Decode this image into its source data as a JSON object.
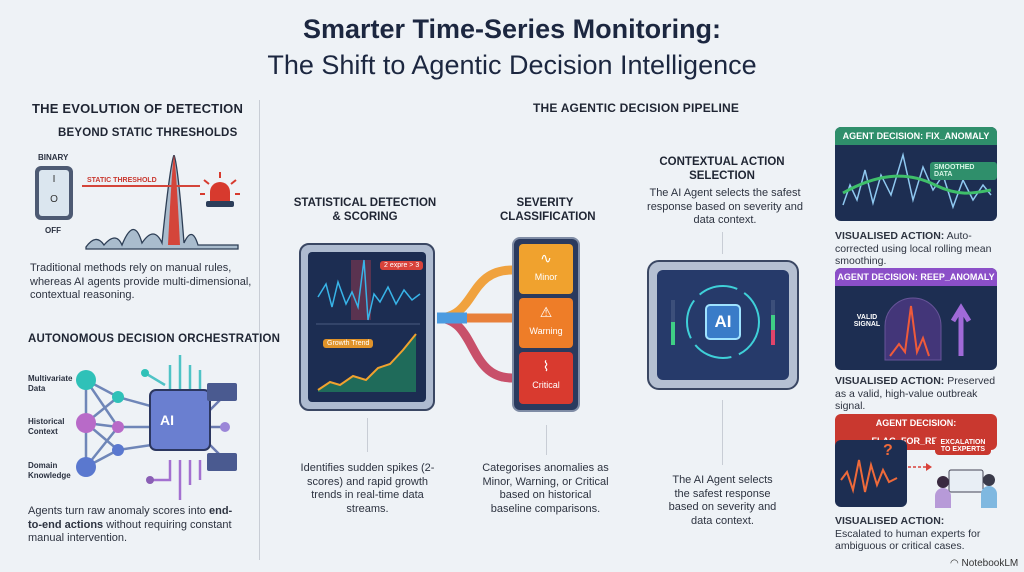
{
  "title": {
    "line1": "Smarter Time-Series Monitoring:",
    "line2": "The Shift to Agentic Decision Intelligence"
  },
  "evolution": {
    "heading": "THE EVOLUTION OF DETECTION",
    "subheading": "BEYOND STATIC THRESHOLDS",
    "switch_top": "BINARY",
    "switch_bottom": "OFF",
    "switch_on_glyph": "I",
    "switch_off_glyph": "O",
    "threshold_label": "STATIC THRESHOLD",
    "text": "Traditional methods rely on manual rules, whereas AI agents provide multi-dimensional, contextual reasoning.",
    "icons": [
      "power-switch-icon",
      "alarm-siren-icon"
    ]
  },
  "orchestration": {
    "heading": "AUTONOMOUS DECISION ORCHESTRATION",
    "inputs": [
      "Multivariate Data",
      "Historical Context",
      "Domain Knowledge"
    ],
    "chip_label": "AI",
    "text_plain_before": "Agents turn raw anomaly scores into ",
    "text_bold": "end-to-end actions",
    "text_plain_after": " without requiring constant manual intervention."
  },
  "pipeline": {
    "heading": "THE AGENTIC DECISION PIPELINE",
    "detection": {
      "heading_line1": "STATISTICAL DETECTION",
      "heading_line2": "& SCORING",
      "spike_label": "2 expre > 3",
      "trend_label": "Growth Trend",
      "text": "Identifies sudden spikes (2-scores) and rapid growth trends in real-time data streams."
    },
    "severity": {
      "heading_line1": "SEVERITY",
      "heading_line2": "CLASSIFICATION",
      "levels": [
        {
          "label": "Minor",
          "color": "#f0a22e",
          "icon": "pulse-icon"
        },
        {
          "label": "Warning",
          "color": "#ee7d28",
          "icon": "warning-triangle-icon"
        },
        {
          "label": "Critical",
          "color": "#d93a2f",
          "icon": "heartbeat-icon"
        }
      ],
      "text": "Categorises anomalies as Minor, Warning, or Critical based on historical baseline comparisons."
    },
    "action": {
      "heading_line1": "CONTEXTUAL ACTION",
      "heading_line2": "SELECTION",
      "text_top": "The AI Agent selects the safest response based on severity and data context.",
      "chip_label": "AI",
      "text_bottom": "The AI Agent selects the safest response based on severity and data context."
    }
  },
  "decisions": [
    {
      "label": "AGENT DECISION: FIX_ANOMALY",
      "color": "#2f8f6b",
      "badge": "SMOOTHED DATA",
      "caption_bold": "VISUALISED ACTION:",
      "caption": " Auto-corrected using local rolling mean smoothing."
    },
    {
      "label": "AGENT DECISION: REEP_ANOMALY",
      "color": "#8b4fc8",
      "badge": "VALID SIGNAL",
      "caption_bold": "VISUALISED ACTION:",
      "caption": " Preserved as a valid, high-value outbreak signal."
    },
    {
      "label": "AGENT DECISION: FLAG_FOR_REVIEW",
      "color": "#c9382f",
      "badge": "EXCALATION TO EXPERTS",
      "question": "?",
      "caption_bold": "VISUALISED ACTION:",
      "caption": "Escalated to human experts for ambiguous or critical cases."
    }
  ],
  "branding": {
    "label": "NotebookLM"
  }
}
